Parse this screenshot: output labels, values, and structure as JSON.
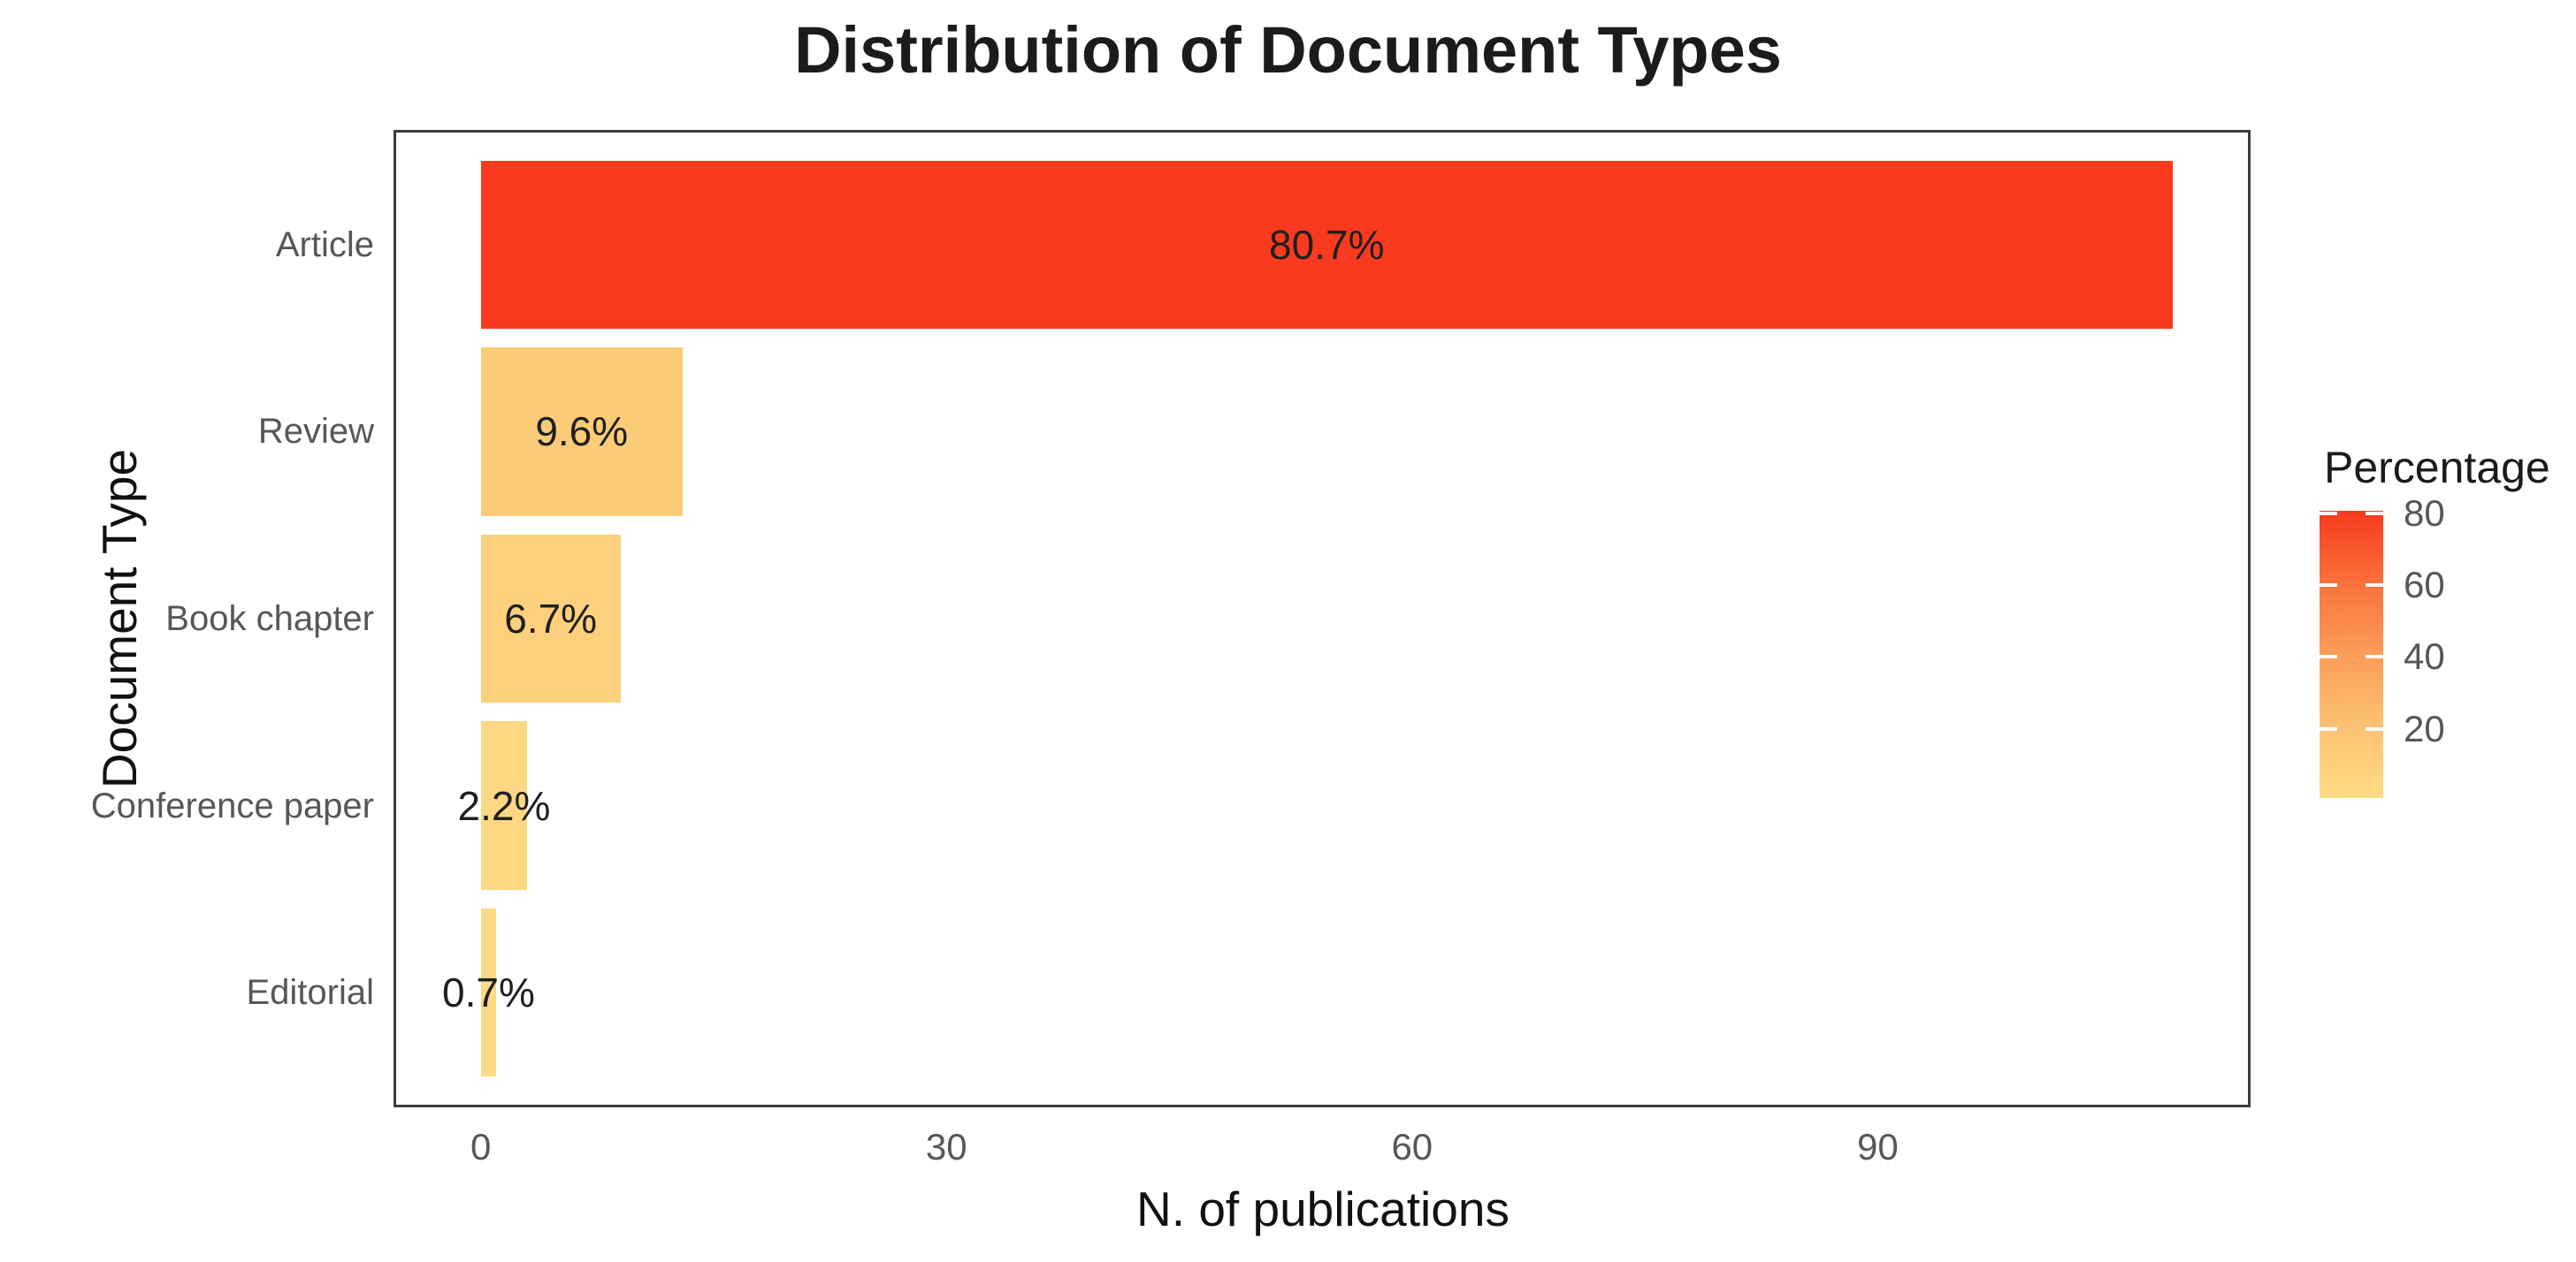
{
  "title": "Distribution of Document Types",
  "chart_data": {
    "type": "bar",
    "orientation": "horizontal",
    "title": "Distribution of Document Types",
    "xlabel": "N. of publications",
    "ylabel": "Document Type",
    "categories": [
      "Article",
      "Review",
      "Book chapter",
      "Conference paper",
      "Editorial"
    ],
    "values": [
      109,
      13,
      9,
      3,
      1
    ],
    "percentages": [
      80.7,
      9.6,
      6.7,
      2.2,
      0.7
    ],
    "bar_labels": [
      "80.7%",
      "9.6%",
      "6.7%",
      "2.2%",
      "0.7%"
    ],
    "bar_colors": [
      "#f93a1e",
      "#fccb77",
      "#fcd07d",
      "#fdd782",
      "#fdda85"
    ],
    "x_ticks": [
      0,
      30,
      60,
      90
    ],
    "x_tick_labels": [
      "0",
      "30",
      "60",
      "90"
    ],
    "xlim": [
      -5.45,
      113.85
    ],
    "band_domain": [
      0.4,
      5.6
    ],
    "bar_width": 0.9,
    "grid": false,
    "legend_position": "right",
    "legend": {
      "title": "Percentage",
      "ticks": [
        80,
        60,
        40,
        20
      ],
      "tick_labels": [
        "80",
        "60",
        "40",
        "20"
      ],
      "range": [
        0.7,
        80.7
      ],
      "gradient_stops": [
        "#f8391c",
        "#f9713b",
        "#fa9d58",
        "#fcc273",
        "#fddc86"
      ]
    }
  },
  "colors": {
    "background": "#ffffff",
    "panel_border": "#3d3d3d",
    "axis_text": "#575757",
    "title_text": "#1b1b1b",
    "bar_label_text": "#1f1f1f",
    "high_color": "#f8391c",
    "low_color": "#fddc86"
  }
}
